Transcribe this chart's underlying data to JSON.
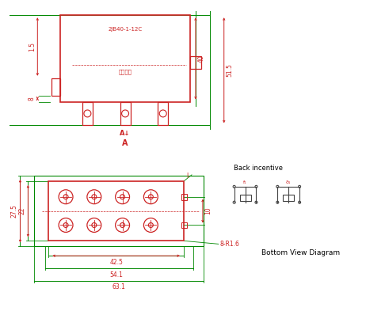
{
  "bg_color": "#ffffff",
  "red": "#cc2222",
  "green": "#008800",
  "dark_gray": "#444444",
  "title_text": "2JB40-1-12C",
  "chinese_text": "继电器记",
  "dim_40": "40",
  "dim_51_5": "51.5",
  "dim_8": "8",
  "dim_1_5": "1.5",
  "dim_27_5": "27.5",
  "dim_22": "22",
  "dim_42_5": "42.5",
  "dim_54_1": "54.1",
  "dim_63_1": "63.1",
  "dim_10": "10",
  "dim_8R1_6": "8-R1.6",
  "label_A": "A",
  "label_l": "l",
  "back_incentive": "Back incentive",
  "bottom_view": "Bottom View Diagram",
  "fig_w": 4.86,
  "fig_h": 4.17,
  "dpi": 100
}
